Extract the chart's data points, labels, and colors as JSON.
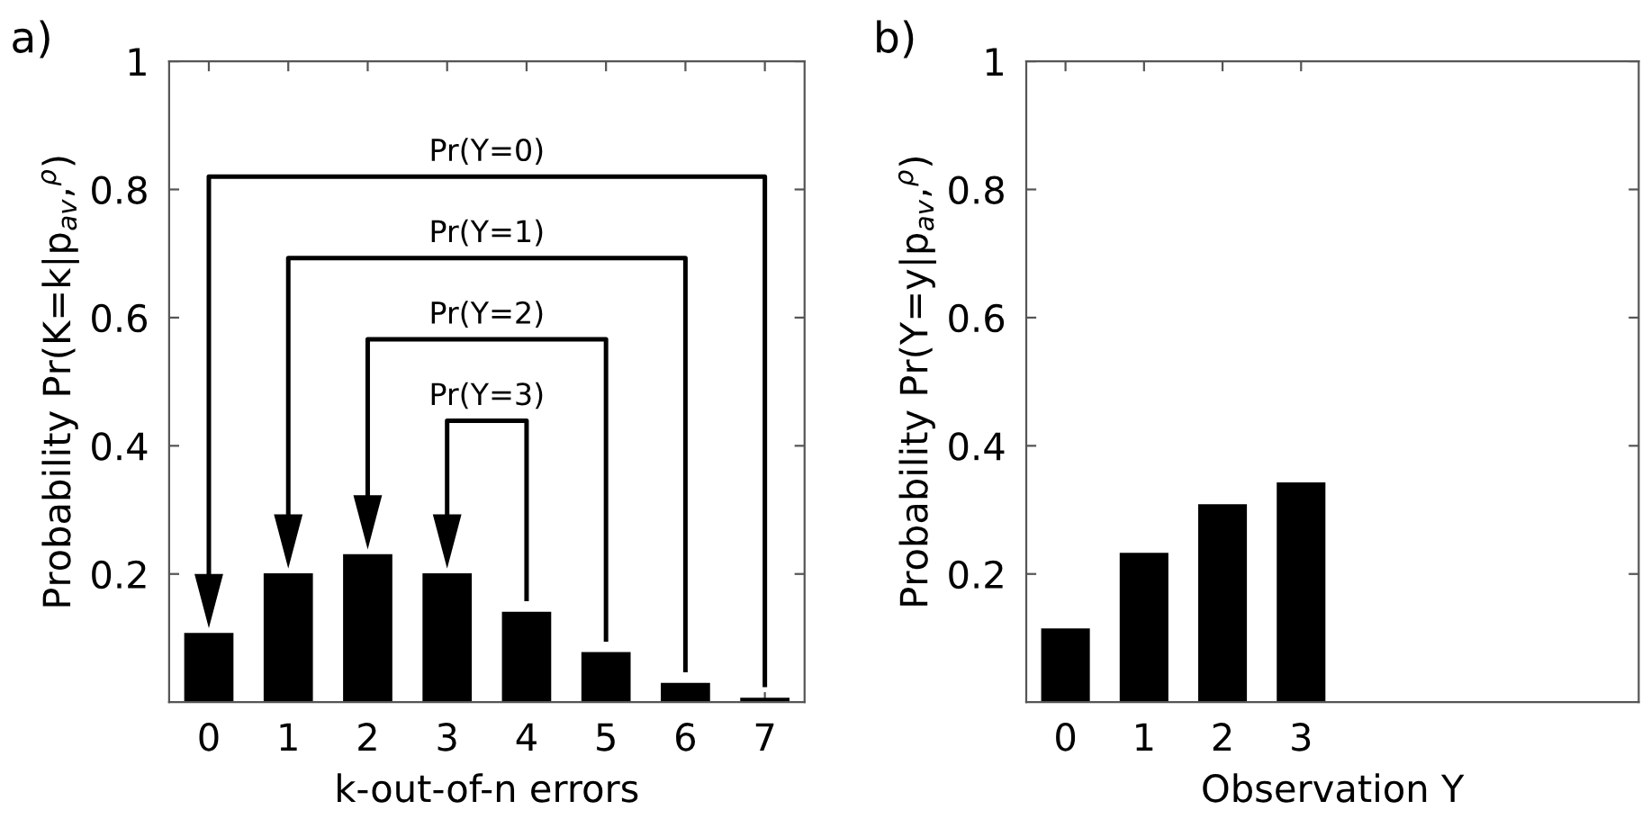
{
  "chart_data": [
    {
      "type": "bar",
      "title": "a)",
      "xlabel": "k-out-of-n errors",
      "ylabel": "Probability Pr(K=k|p$_{av}$,$^{ρ}$)",
      "categories": [
        "0",
        "1",
        "2",
        "3",
        "4",
        "5",
        "6",
        "7"
      ],
      "series": [
        {
          "color": "#000000",
          "values": [
            0.108,
            0.201,
            0.231,
            0.201,
            0.141,
            0.078,
            0.03,
            0.007
          ]
        }
      ],
      "ylim": [
        0,
        1
      ],
      "yticks": [
        0.2,
        0.4,
        0.6,
        0.8,
        1
      ],
      "annotations": [
        "Pr(Y=0)",
        "Pr(Y=1)",
        "Pr(Y=2)",
        "Pr(Y=3)"
      ]
    },
    {
      "type": "bar",
      "title": "b)",
      "xlabel": "Observation Y",
      "ylabel": "Probability Pr(Y=y|p$_{av}$,$^{ρ}$)",
      "x": [
        0,
        1,
        2,
        3
      ],
      "series": [
        {
          "color": "#000000",
          "values": [
            0.115,
            0.233,
            0.309,
            0.343
          ]
        }
      ],
      "xlim": [
        -0.5,
        7.3
      ],
      "xticks": [
        0,
        1,
        2,
        3
      ],
      "ylim": [
        0,
        1
      ],
      "yticks": [
        0.2,
        0.4,
        0.6,
        0.8,
        1
      ]
    }
  ]
}
